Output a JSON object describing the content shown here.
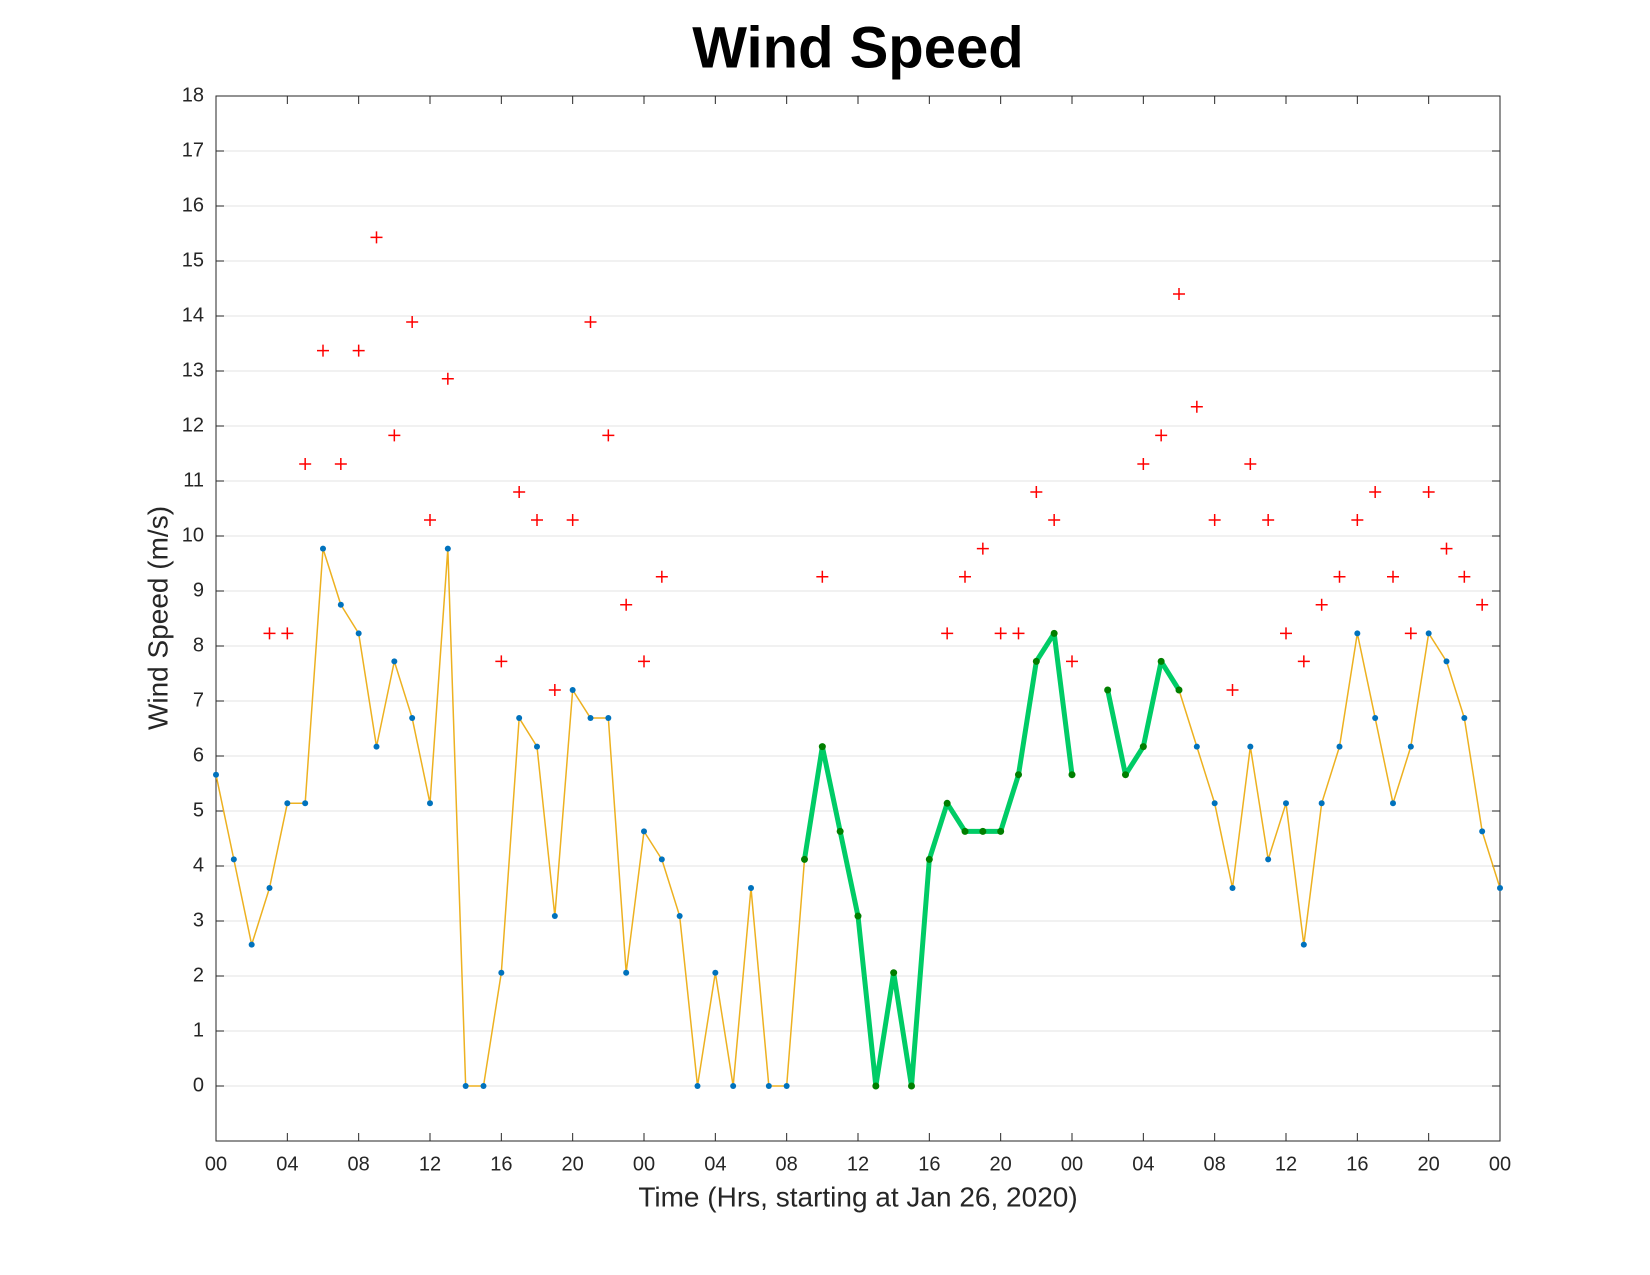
{
  "chart_data": {
    "type": "line",
    "title": "Wind Speed",
    "x_label": "Time (Hrs, starting at Jan 26, 2020)",
    "y_label": "Wind Speed (m/s)",
    "x": [
      0,
      1,
      2,
      3,
      4,
      5,
      6,
      7,
      8,
      9,
      10,
      11,
      12,
      13,
      14,
      15,
      16,
      17,
      18,
      19,
      20,
      21,
      22,
      23,
      24,
      25,
      26,
      27,
      28,
      29,
      30,
      31,
      32,
      33,
      34,
      35,
      36,
      37,
      38,
      39,
      40,
      41,
      42,
      43,
      44,
      45,
      46,
      47,
      48,
      49,
      50,
      51,
      52,
      53,
      54,
      55,
      56,
      57,
      58,
      59,
      60,
      61,
      62,
      63,
      64,
      65,
      66,
      67,
      68,
      69,
      70,
      71,
      72
    ],
    "series": [
      {
        "color": "#edb120",
        "marker_color": "#0072bd",
        "marker": "dot",
        "line_width": 1.5,
        "values": [
          5.66,
          4.12,
          2.57,
          3.6,
          5.14,
          5.14,
          9.77,
          8.75,
          8.23,
          6.17,
          7.72,
          6.69,
          5.14,
          9.77,
          0,
          0,
          2.06,
          6.69,
          6.17,
          3.09,
          7.2,
          6.69,
          6.69,
          2.06,
          4.63,
          4.12,
          3.09,
          0,
          2.06,
          0,
          3.6,
          0,
          0,
          4.12,
          null,
          null,
          null,
          null,
          null,
          null,
          null,
          null,
          null,
          null,
          null,
          null,
          null,
          null,
          null,
          null,
          null,
          null,
          null,
          null,
          7.2,
          6.17,
          5.14,
          3.6,
          6.17,
          4.12,
          5.14,
          2.57,
          5.14,
          6.17,
          8.23,
          6.69,
          5.14,
          6.17,
          8.23,
          7.72,
          6.69,
          4.63,
          3.6
        ]
      },
      {
        "color": "#00cc66",
        "marker_color": "#007f00",
        "marker": "dot",
        "line_width": 5,
        "values": [
          null,
          null,
          null,
          null,
          null,
          null,
          null,
          null,
          null,
          null,
          null,
          null,
          null,
          null,
          null,
          null,
          null,
          null,
          null,
          null,
          null,
          null,
          null,
          null,
          null,
          null,
          null,
          null,
          null,
          null,
          null,
          null,
          null,
          4.12,
          6.17,
          4.63,
          3.09,
          0,
          2.06,
          0,
          4.12,
          5.14,
          4.63,
          4.63,
          4.63,
          5.66,
          7.72,
          8.23,
          5.66,
          null,
          7.2,
          5.66,
          6.17,
          7.72,
          7.2,
          null,
          null,
          null,
          null,
          null,
          null,
          null,
          null,
          null,
          null,
          null,
          null,
          null,
          null,
          null,
          null,
          null,
          null
        ]
      },
      {
        "color": "#ff0000",
        "marker": "plus",
        "line_width": 0,
        "values": [
          null,
          null,
          null,
          8.23,
          8.23,
          11.31,
          13.37,
          11.31,
          13.37,
          15.43,
          11.83,
          13.89,
          10.29,
          12.86,
          null,
          null,
          7.72,
          10.8,
          10.29,
          7.2,
          10.29,
          13.89,
          11.83,
          8.75,
          7.72,
          9.26,
          null,
          null,
          null,
          null,
          null,
          null,
          null,
          null,
          9.26,
          null,
          null,
          null,
          null,
          null,
          null,
          8.23,
          9.26,
          9.77,
          8.23,
          8.23,
          10.8,
          10.29,
          7.72,
          null,
          null,
          null,
          11.31,
          11.83,
          14.4,
          12.35,
          10.29,
          7.2,
          11.31,
          10.29,
          8.23,
          7.72,
          8.75,
          9.26,
          10.29,
          10.8,
          9.26,
          8.23,
          10.8,
          9.77,
          9.26,
          8.75,
          null
        ]
      }
    ],
    "xlim": [
      0,
      72
    ],
    "xticks": [
      {
        "value": 0,
        "label": "00"
      },
      {
        "value": 4,
        "label": "04"
      },
      {
        "value": 8,
        "label": "08"
      },
      {
        "value": 12,
        "label": "12"
      },
      {
        "value": 16,
        "label": "16"
      },
      {
        "value": 20,
        "label": "20"
      },
      {
        "value": 24,
        "label": "00"
      },
      {
        "value": 28,
        "label": "04"
      },
      {
        "value": 32,
        "label": "08"
      },
      {
        "value": 36,
        "label": "12"
      },
      {
        "value": 40,
        "label": "16"
      },
      {
        "value": 44,
        "label": "20"
      },
      {
        "value": 48,
        "label": "00"
      },
      {
        "value": 52,
        "label": "04"
      },
      {
        "value": 56,
        "label": "08"
      },
      {
        "value": 60,
        "label": "12"
      },
      {
        "value": 64,
        "label": "16"
      },
      {
        "value": 68,
        "label": "20"
      },
      {
        "value": 72,
        "label": "00"
      }
    ],
    "ylim": [
      -1,
      18
    ],
    "yticks": [
      0,
      1,
      2,
      3,
      4,
      5,
      6,
      7,
      8,
      9,
      10,
      11,
      12,
      13,
      14,
      15,
      16,
      17,
      18
    ],
    "grid": true
  }
}
